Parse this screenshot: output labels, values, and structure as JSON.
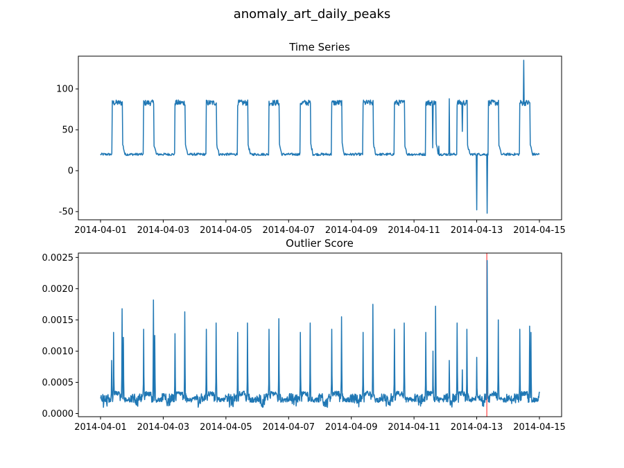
{
  "figure": {
    "title": "anomaly_art_daily_peaks",
    "line_color": "#1f77b4",
    "anomaly_color": "#ff0000"
  },
  "chart_data": [
    {
      "type": "line",
      "title": "Time Series",
      "xlabel": "",
      "ylabel": "",
      "x_range": [
        "2014-04-01",
        "2014-04-15"
      ],
      "ylim": [
        -60,
        140
      ],
      "x_ticks": [
        "2014-04-01",
        "2014-04-03",
        "2014-04-05",
        "2014-04-07",
        "2014-04-09",
        "2014-04-11",
        "2014-04-13",
        "2014-04-15"
      ],
      "y_ticks": [
        -50,
        0,
        50,
        100
      ],
      "grid": false,
      "daily_pattern": {
        "baseline": 20,
        "peak": 83,
        "rise_time": "09:00",
        "fall_time": "17:00"
      },
      "anomalies": [
        {
          "x": "2014-04-11T14:30",
          "y": 28
        },
        {
          "x": "2014-04-11T19:00",
          "y": 30
        },
        {
          "x": "2014-04-12T03:00",
          "y": 88
        },
        {
          "x": "2014-04-12T13:00",
          "y": 48
        },
        {
          "x": "2014-04-13T00:00",
          "y": -48
        },
        {
          "x": "2014-04-13T08:00",
          "y": -52
        },
        {
          "x": "2014-04-14T12:00",
          "y": 135
        }
      ]
    },
    {
      "type": "line",
      "title": "Outlier Score",
      "xlabel": "",
      "ylabel": "",
      "x_range": [
        "2014-04-01",
        "2014-04-15"
      ],
      "ylim": [
        -5e-05,
        0.00257
      ],
      "x_ticks": [
        "2014-04-01",
        "2014-04-03",
        "2014-04-05",
        "2014-04-07",
        "2014-04-09",
        "2014-04-11",
        "2014-04-13",
        "2014-04-15"
      ],
      "y_ticks": [
        "0.0000",
        "0.0005",
        "0.0010",
        "0.0015",
        "0.0020",
        "0.0025"
      ],
      "grid": false,
      "baseline": 0.00025,
      "anomaly_marker": "2014-04-13T07:45",
      "peaks": [
        {
          "x": "2014-04-01T08:30",
          "y": 0.00085
        },
        {
          "x": "2014-04-01T10:00",
          "y": 0.0013
        },
        {
          "x": "2014-04-01T16:30",
          "y": 0.00168
        },
        {
          "x": "2014-04-01T17:30",
          "y": 0.00122
        },
        {
          "x": "2014-04-02T09:00",
          "y": 0.00135
        },
        {
          "x": "2014-04-02T16:30",
          "y": 0.00182
        },
        {
          "x": "2014-04-02T17:30",
          "y": 0.00125
        },
        {
          "x": "2014-04-03T09:00",
          "y": 0.00128
        },
        {
          "x": "2014-04-03T16:30",
          "y": 0.00163
        },
        {
          "x": "2014-04-04T09:00",
          "y": 0.00135
        },
        {
          "x": "2014-04-04T16:30",
          "y": 0.00145
        },
        {
          "x": "2014-04-05T09:00",
          "y": 0.0013
        },
        {
          "x": "2014-04-05T16:30",
          "y": 0.00145
        },
        {
          "x": "2014-04-06T09:00",
          "y": 0.00135
        },
        {
          "x": "2014-04-06T16:30",
          "y": 0.00152
        },
        {
          "x": "2014-04-07T09:00",
          "y": 0.0013
        },
        {
          "x": "2014-04-07T16:30",
          "y": 0.00145
        },
        {
          "x": "2014-04-08T09:00",
          "y": 0.00135
        },
        {
          "x": "2014-04-08T16:30",
          "y": 0.00155
        },
        {
          "x": "2014-04-09T09:00",
          "y": 0.0013
        },
        {
          "x": "2014-04-09T16:30",
          "y": 0.00175
        },
        {
          "x": "2014-04-10T09:00",
          "y": 0.00135
        },
        {
          "x": "2014-04-10T16:30",
          "y": 0.00145
        },
        {
          "x": "2014-04-11T09:00",
          "y": 0.0013
        },
        {
          "x": "2014-04-11T14:30",
          "y": 0.001
        },
        {
          "x": "2014-04-11T16:30",
          "y": 0.00172
        },
        {
          "x": "2014-04-12T03:00",
          "y": 0.00085
        },
        {
          "x": "2014-04-12T09:00",
          "y": 0.00145
        },
        {
          "x": "2014-04-12T13:00",
          "y": 0.0007
        },
        {
          "x": "2014-04-12T16:30",
          "y": 0.00135
        },
        {
          "x": "2014-04-13T00:00",
          "y": 0.0009
        },
        {
          "x": "2014-04-13T08:00",
          "y": 0.00245
        },
        {
          "x": "2014-04-13T16:30",
          "y": 0.0015
        },
        {
          "x": "2014-04-14T09:00",
          "y": 0.00135
        },
        {
          "x": "2014-04-14T16:30",
          "y": 0.0014
        },
        {
          "x": "2014-04-14T17:30",
          "y": 0.0013
        }
      ],
      "end_value": {
        "x": "2014-04-15T00:00",
        "y": 0.00035
      }
    }
  ]
}
